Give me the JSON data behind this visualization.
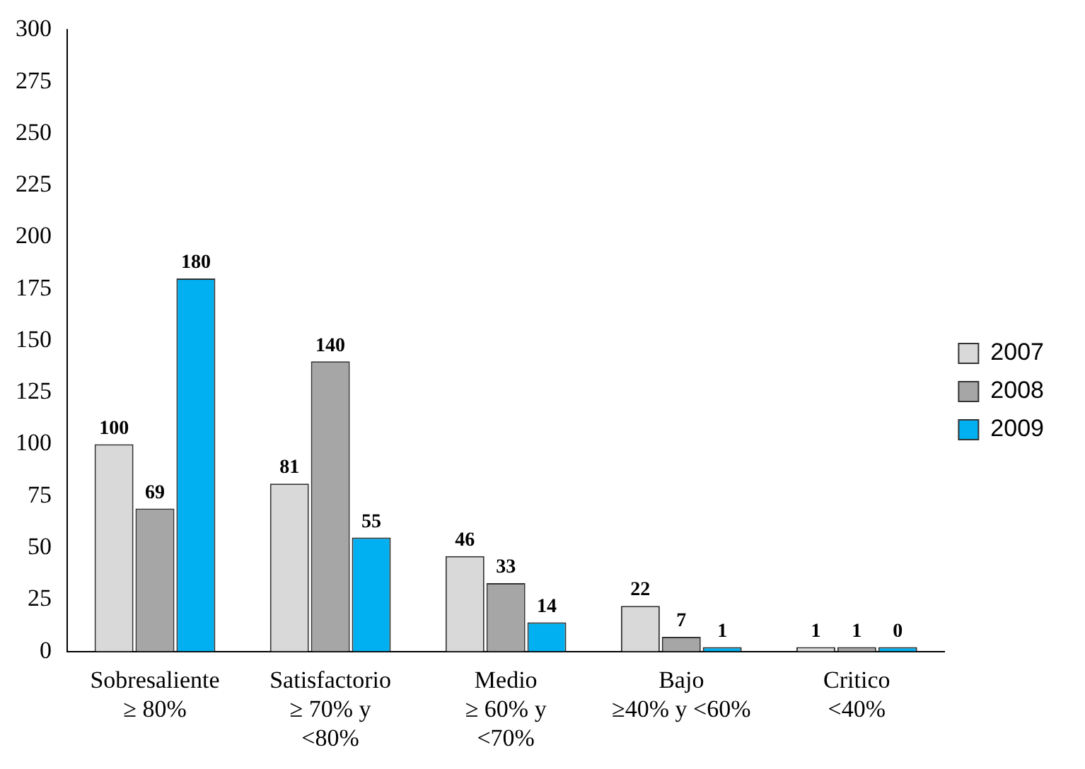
{
  "chart_data": {
    "type": "bar",
    "categories": [
      "Sobresaliente\n≥ 80%",
      "Satisfactorio\n≥ 70% y\n<80%",
      "Medio\n≥ 60% y\n<70%",
      "Bajo\n≥40% y <60%",
      "Critico\n<40%"
    ],
    "series": [
      {
        "name": "2007",
        "color": "#d9d9d9",
        "values": [
          100,
          81,
          46,
          22,
          1
        ]
      },
      {
        "name": "2008",
        "color": "#a6a6a6",
        "values": [
          69,
          140,
          33,
          7,
          1
        ]
      },
      {
        "name": "2009",
        "color": "#00b0f0",
        "values": [
          180,
          55,
          14,
          1,
          0
        ]
      }
    ],
    "ylim": [
      0,
      300
    ],
    "yticks": [
      0,
      25,
      50,
      75,
      100,
      125,
      150,
      175,
      200,
      225,
      250,
      275,
      300
    ],
    "grid": false,
    "legend": "right",
    "data_labels": true
  }
}
